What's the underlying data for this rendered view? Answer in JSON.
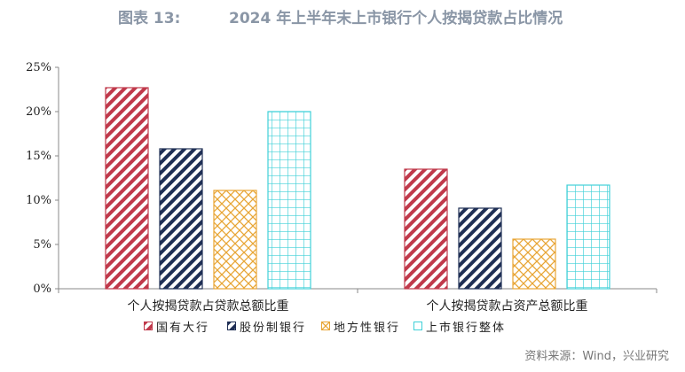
{
  "title": {
    "label": "图表 13:",
    "text": "2024 年上半年末上市银行个人按揭贷款占比情况"
  },
  "source": "资料来源：Wind，兴业研究",
  "colors": {
    "国有大行": "#c0394b",
    "股份制银行": "#1f2f55",
    "地方性银行": "#e8a535",
    "上市银行整体": "#3fd0d8",
    "axis": "#888888"
  },
  "chart_data": {
    "type": "bar",
    "categories": [
      "个人按揭贷款占贷款总额比重",
      "个人按揭贷款占资产总额比重"
    ],
    "series": [
      {
        "name": "国有大行",
        "values": [
          22.7,
          13.5
        ]
      },
      {
        "name": "股份制银行",
        "values": [
          15.8,
          9.1
        ]
      },
      {
        "name": "地方性银行",
        "values": [
          11.1,
          5.6
        ]
      },
      {
        "name": "上市银行整体",
        "values": [
          20.0,
          11.7
        ]
      }
    ],
    "ylim": [
      0,
      25
    ],
    "yticks": [
      "0%",
      "5%",
      "10%",
      "15%",
      "20%",
      "25%"
    ],
    "legend_position": "bottom",
    "grid": false
  }
}
